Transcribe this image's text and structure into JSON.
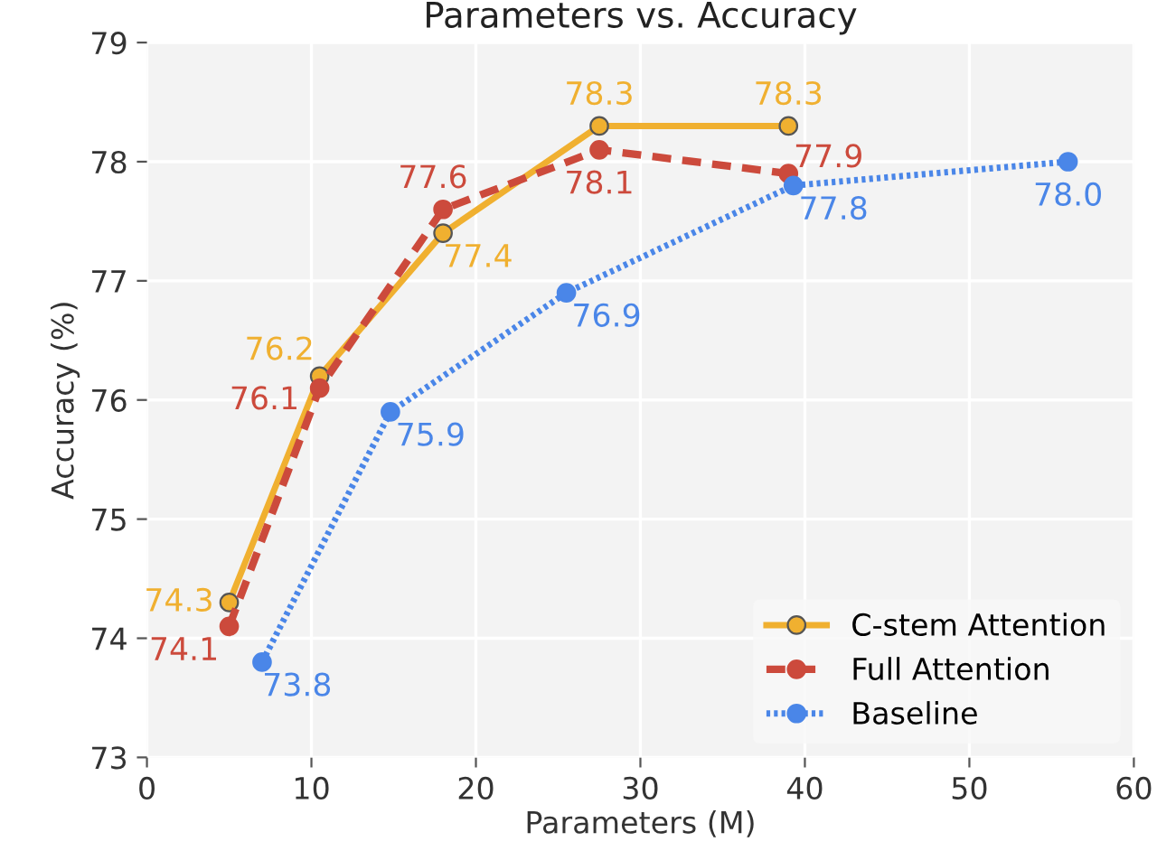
{
  "chart_data": {
    "type": "line",
    "title": "Parameters vs. Accuracy",
    "xlabel": "Parameters (M)",
    "ylabel": "Accuracy (%)",
    "xlim": [
      0,
      60
    ],
    "xticks": [
      0,
      10,
      20,
      30,
      40,
      50,
      60
    ],
    "ylim": [
      73,
      79
    ],
    "yticks": [
      73,
      74,
      75,
      76,
      77,
      78,
      79
    ],
    "grid": true,
    "legend": "bottom right",
    "marker": "circle",
    "data_labels": true,
    "series": [
      {
        "name": "C-stem Attention",
        "color": "#f0b030",
        "line_style": "solid",
        "x": [
          5,
          10.5,
          18,
          27.5,
          39
        ],
        "values": [
          74.3,
          76.2,
          77.4,
          78.3,
          78.3
        ],
        "value_labels": [
          "74.3",
          "76.2",
          "77.4",
          "78.3",
          "78.3"
        ]
      },
      {
        "name": "Full Attention",
        "color": "#cc4a3c",
        "line_style": "dashed",
        "x": [
          5,
          10.5,
          18,
          27.5,
          39
        ],
        "values": [
          74.1,
          76.1,
          77.6,
          78.1,
          77.9
        ],
        "value_labels": [
          "74.1",
          "76.1",
          "77.6",
          "78.1",
          "77.9"
        ]
      },
      {
        "name": "Baseline",
        "color": "#4a86e8",
        "line_style": "dotted",
        "x": [
          7,
          14.8,
          25.5,
          39.3,
          56
        ],
        "values": [
          73.8,
          75.9,
          76.9,
          77.8,
          78.0
        ],
        "value_labels": [
          "73.8",
          "75.9",
          "76.9",
          "77.8",
          "78.0"
        ]
      }
    ]
  }
}
